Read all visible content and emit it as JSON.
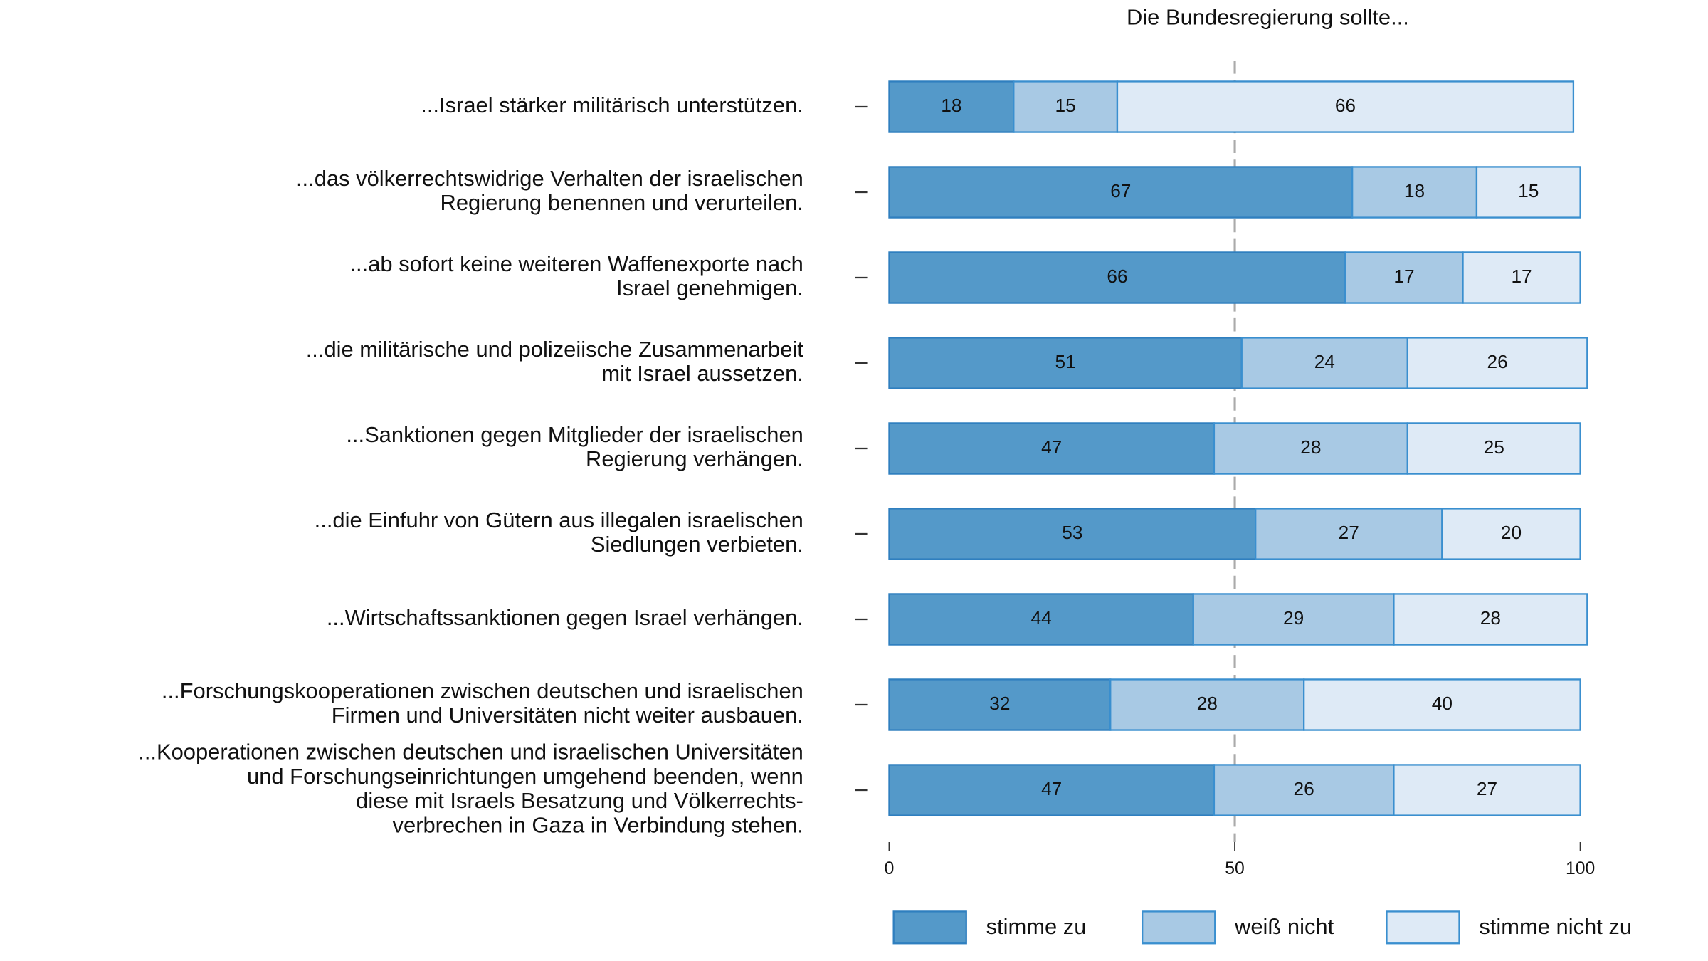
{
  "chart_data": {
    "type": "stacked-barh",
    "title": "Die Bundesregierung sollte...",
    "categories": [
      "...Israel stärker militärisch unterstützen.",
      "...das völkerrechtswidrige Verhalten der israelischen\nRegierung benennen und verurteilen.",
      "...ab sofort keine weiteren Waffenexporte nach\nIsrael genehmigen.",
      "...die militärische und polizeiische Zusammenarbeit\nmit Israel aussetzen.",
      "...Sanktionen gegen Mitglieder der israelischen\nRegierung verhängen.",
      "...die Einfuhr von Gütern aus illegalen israelischen\nSiedlungen verbieten.",
      "...Wirtschaftssanktionen gegen Israel verhängen.",
      "...Forschungskooperationen zwischen deutschen und israelischen\nFirmen und Universitäten nicht weiter ausbauen.",
      "...Kooperationen zwischen deutschen und israelischen Universitäten\nund Forschungseinrichtungen umgehend beenden, wenn\ndiese mit Israels Besatzung und Völkerrechts-\nverbrechen in Gaza in Verbindung stehen."
    ],
    "series": [
      {
        "name": "stimme zu",
        "color": "#5499c9",
        "values": [
          18,
          67,
          66,
          51,
          47,
          53,
          44,
          32,
          47
        ]
      },
      {
        "name": "weiß nicht",
        "color": "#a8c9e4",
        "values": [
          15,
          18,
          17,
          24,
          28,
          27,
          29,
          28,
          26
        ]
      },
      {
        "name": "stimme nicht zu",
        "color": "#deeaf6",
        "values": [
          66,
          15,
          17,
          26,
          25,
          20,
          28,
          40,
          27
        ]
      }
    ],
    "xlim": [
      0,
      100
    ],
    "xticks": [
      0,
      50,
      100
    ],
    "reference_line": 50,
    "legend": "bottom"
  }
}
